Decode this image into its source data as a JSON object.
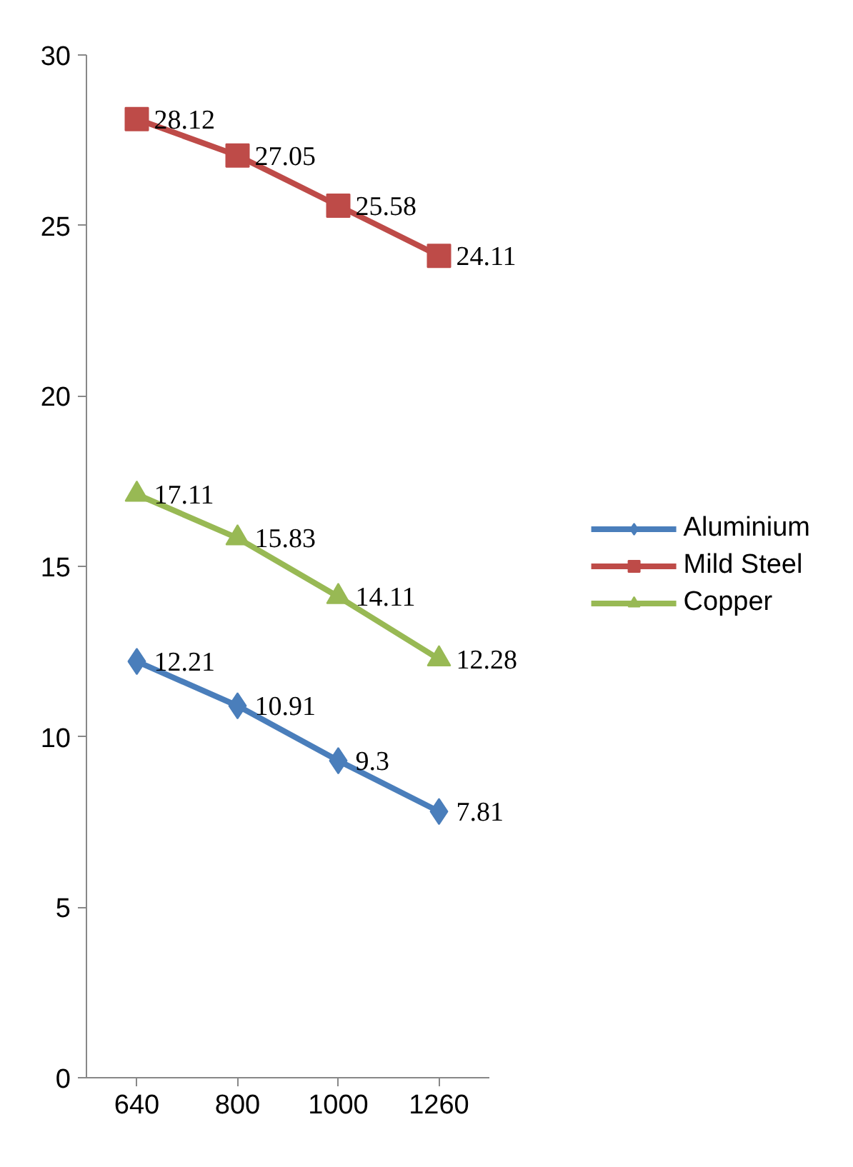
{
  "chart_data": {
    "type": "line",
    "categories": [
      "640",
      "800",
      "1000",
      "1260"
    ],
    "series": [
      {
        "name": "Aluminium",
        "color": "#4a7ebb",
        "marker": "diamond",
        "values": [
          12.21,
          10.91,
          9.3,
          7.81
        ]
      },
      {
        "name": "Mild Steel",
        "color": "#be4b48",
        "marker": "square",
        "values": [
          28.12,
          27.05,
          25.58,
          24.11
        ]
      },
      {
        "name": "Copper",
        "color": "#98b954",
        "marker": "triangle",
        "values": [
          17.11,
          15.83,
          14.11,
          12.28
        ]
      }
    ],
    "ylim": [
      0,
      30
    ],
    "yticks": [
      0,
      5,
      10,
      15,
      20,
      25,
      30
    ],
    "grid": false,
    "legend": "right",
    "data_labels": true
  }
}
